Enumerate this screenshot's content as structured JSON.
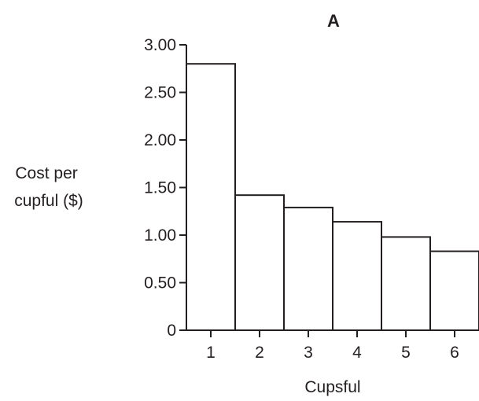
{
  "chart_data": {
    "type": "bar",
    "title": "A",
    "xlabel": "Cupsful",
    "ylabel": [
      "Cost per",
      "cupful ($)"
    ],
    "categories": [
      "1",
      "2",
      "3",
      "4",
      "5",
      "6"
    ],
    "values": [
      2.8,
      1.42,
      1.29,
      1.14,
      0.98,
      0.83
    ],
    "ylim": [
      0,
      3.0
    ],
    "yticks": [
      {
        "value": 0,
        "label": "0"
      },
      {
        "value": 0.5,
        "label": "0.50"
      },
      {
        "value": 1.0,
        "label": "1.00"
      },
      {
        "value": 1.5,
        "label": "1.50"
      },
      {
        "value": 2.0,
        "label": "2.00"
      },
      {
        "value": 2.5,
        "label": "2.50"
      },
      {
        "value": 3.0,
        "label": "3.00"
      }
    ],
    "grid": false,
    "legend": "none",
    "colors": {
      "bar_fill": "#ffffff",
      "stroke": "#231f20"
    }
  }
}
